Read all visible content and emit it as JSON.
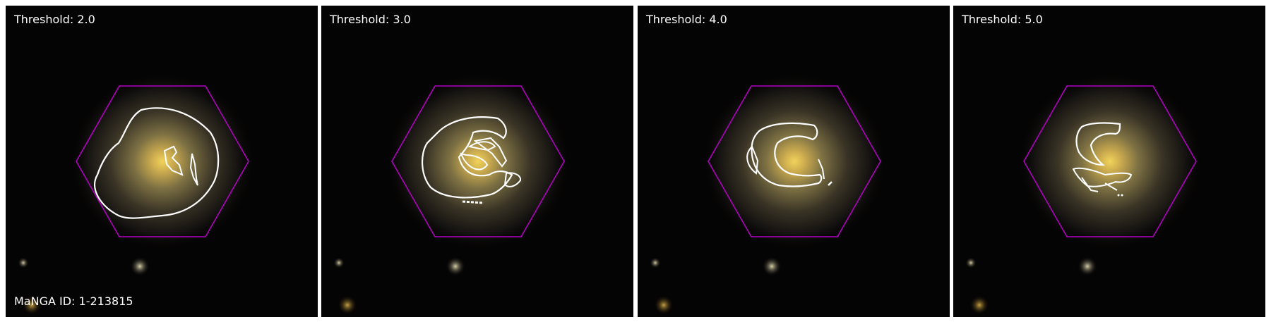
{
  "figure": {
    "panels": [
      {
        "threshold_label": "Threshold: 2.0"
      },
      {
        "threshold_label": "Threshold: 3.0"
      },
      {
        "threshold_label": "Threshold: 4.0"
      },
      {
        "threshold_label": "Threshold: 5.0"
      }
    ],
    "id_label": "MaNGA ID: 1-213815",
    "colors": {
      "hexagon": "#b000c0",
      "contour": "#ffffff",
      "galaxy_core": "#f0d060",
      "background": "#000000"
    }
  }
}
